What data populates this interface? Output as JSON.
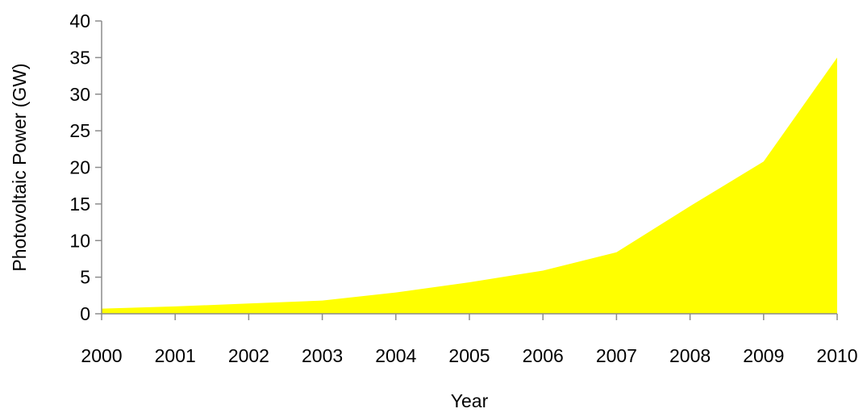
{
  "chart_data": {
    "type": "area",
    "xlabel": "Year",
    "ylabel": "Photovoltaic Power (GW)",
    "x": [
      "2000",
      "2001",
      "2002",
      "2003",
      "2004",
      "2005",
      "2006",
      "2007",
      "2008",
      "2009",
      "2010"
    ],
    "series": [
      {
        "values": [
          0.7,
          1.0,
          1.4,
          1.8,
          2.9,
          4.3,
          5.9,
          8.4,
          14.7,
          20.8,
          35.0
        ],
        "color": "#ffff00"
      }
    ],
    "ylim": [
      0,
      40
    ],
    "yticks": [
      "0",
      "5",
      "10",
      "15",
      "20",
      "25",
      "30",
      "35",
      "40"
    ],
    "grid": false,
    "legend": "none"
  }
}
